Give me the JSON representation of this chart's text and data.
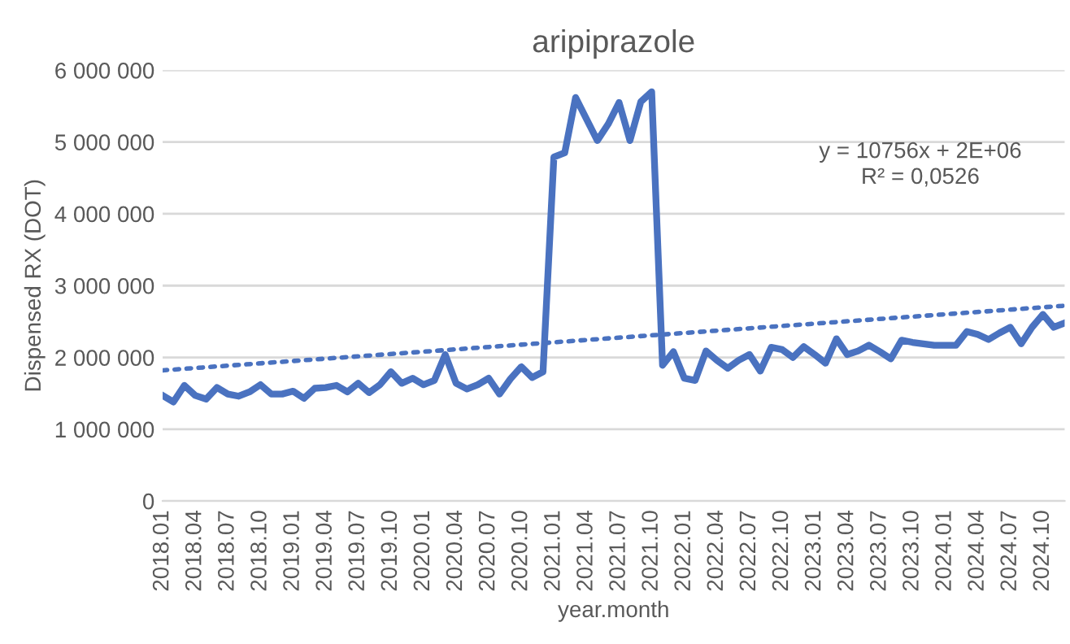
{
  "chart_data": {
    "type": "line",
    "title": "aripiprazole",
    "xlabel": "year.month",
    "ylabel": "Dispensed RX (DOT)",
    "categories": [
      "2018.01",
      null,
      null,
      "2018.04",
      null,
      null,
      "2018.07",
      null,
      null,
      "2018.10",
      null,
      null,
      "2019.01",
      null,
      null,
      "2019.04",
      null,
      null,
      "2019.07",
      null,
      null,
      "2019.10",
      null,
      null,
      "2020.01",
      null,
      null,
      "2020.04",
      null,
      null,
      "2020.07",
      null,
      null,
      "2020.10",
      null,
      null,
      "2021.01",
      null,
      null,
      "2021.04",
      null,
      null,
      "2021.07",
      null,
      null,
      "2021.10",
      null,
      null,
      "2022.01",
      null,
      null,
      "2022.04",
      null,
      null,
      "2022.07",
      null,
      null,
      "2022.10",
      null,
      null,
      "2023.01",
      null,
      null,
      "2023.04",
      null,
      null,
      "2023.07",
      null,
      null,
      "2023.10",
      null,
      null,
      "2024.01",
      null,
      null,
      "2024.04",
      null,
      null,
      "2024.07",
      null,
      null,
      "2024.10",
      null,
      null
    ],
    "series": [
      {
        "color": "#4a72c0",
        "line_style": "solid",
        "values": [
          1470000,
          1380000,
          1610000,
          1470000,
          1420000,
          1580000,
          1490000,
          1460000,
          1520000,
          1620000,
          1490000,
          1490000,
          1530000,
          1430000,
          1570000,
          1580000,
          1610000,
          1520000,
          1640000,
          1510000,
          1620000,
          1800000,
          1640000,
          1710000,
          1620000,
          1680000,
          2040000,
          1640000,
          1560000,
          1620000,
          1710000,
          1490000,
          1700000,
          1870000,
          1720000,
          1800000,
          4790000,
          4850000,
          5620000,
          5320000,
          5020000,
          5250000,
          5550000,
          5020000,
          5560000,
          5700000,
          1890000,
          2080000,
          1710000,
          1680000,
          2090000,
          1960000,
          1850000,
          1960000,
          2040000,
          1810000,
          2140000,
          2110000,
          2000000,
          2150000,
          2040000,
          1920000,
          2260000,
          2040000,
          2090000,
          2170000,
          2080000,
          1980000,
          2240000,
          2210000,
          2190000,
          2170000,
          2170000,
          2170000,
          2360000,
          2320000,
          2250000,
          2340000,
          2420000,
          2190000,
          2420000,
          2600000,
          2420000,
          2480000
        ]
      },
      {
        "color": "#4a72c0",
        "line_style": "dotted",
        "values": [
          1820000,
          null,
          null,
          null,
          null,
          null,
          null,
          null,
          null,
          null,
          null,
          null,
          null,
          null,
          null,
          null,
          null,
          null,
          null,
          null,
          null,
          null,
          null,
          null,
          null,
          null,
          null,
          null,
          null,
          null,
          null,
          null,
          null,
          null,
          null,
          null,
          null,
          null,
          null,
          null,
          null,
          null,
          null,
          null,
          null,
          null,
          null,
          null,
          null,
          null,
          null,
          null,
          null,
          null,
          null,
          null,
          null,
          null,
          null,
          null,
          null,
          null,
          null,
          null,
          null,
          null,
          null,
          null,
          null,
          null,
          null,
          null,
          null,
          null,
          null,
          null,
          null,
          null,
          null,
          null,
          null,
          null,
          null,
          2720000
        ]
      }
    ],
    "ylim": [
      0,
      6000000
    ],
    "yticks": [
      {
        "value": 0,
        "label": "0"
      },
      {
        "value": 1000000,
        "label": "1 000 000"
      },
      {
        "value": 2000000,
        "label": "2 000 000"
      },
      {
        "value": 3000000,
        "label": "3 000 000"
      },
      {
        "value": 4000000,
        "label": "4 000 000"
      },
      {
        "value": 5000000,
        "label": "5 000 000"
      },
      {
        "value": 6000000,
        "label": "6 000 000"
      }
    ],
    "grid": "y",
    "marker": "none",
    "annotations": [
      "y = 10756x + 2E+06",
      "R² = 0,0526"
    ]
  }
}
